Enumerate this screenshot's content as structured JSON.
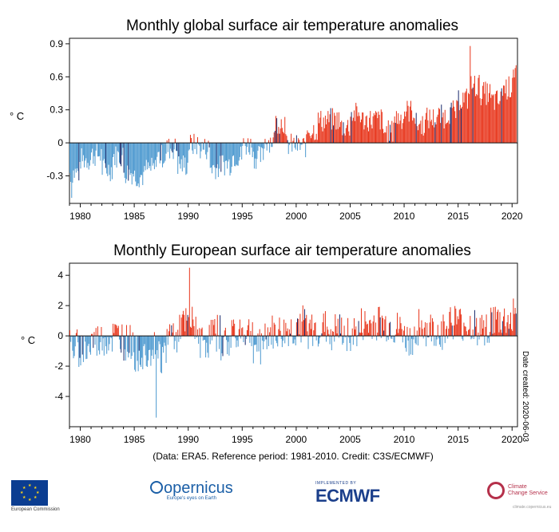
{
  "credit": "(Data: ERA5.  Reference period: 1981-2010.  Credit: C3S/ECMWF)",
  "date_created": "Date created: 2020-06-03",
  "logos": {
    "ec_text": "European Commission",
    "copernicus": "opernicus",
    "copernicus_tag": "Europe's eyes on Earth",
    "ecmwf_small": "IMPLEMENTED BY",
    "ecmwf": "ECMWF",
    "c3s_line1": "Climate",
    "c3s_line2": "Change Service",
    "c3s_url": "climate.copernicus.eu"
  },
  "colors": {
    "warm": "#e8361c",
    "cool": "#4e9ad0",
    "dark": "#1a2b6d",
    "axis": "#111111"
  },
  "chart_data": [
    {
      "type": "bar",
      "title": "Monthly global surface air temperature anomalies",
      "ylabel": "° C",
      "xlabel": "",
      "xlim": [
        1979,
        2020.5
      ],
      "ylim": [
        -0.55,
        0.95
      ],
      "yticks": [
        -0.3,
        0,
        0.3,
        0.6,
        0.9
      ],
      "ytick_labels": [
        "-0.3",
        "0",
        "0.3",
        "0.6",
        "0.9"
      ],
      "xticks": [
        1980,
        1985,
        1990,
        1995,
        2000,
        2005,
        2010,
        2015,
        2020
      ],
      "resolution": "monthly",
      "annual_mean_approx": {
        "years": [
          1979,
          1980,
          1981,
          1982,
          1983,
          1984,
          1985,
          1986,
          1987,
          1988,
          1989,
          1990,
          1991,
          1992,
          1993,
          1994,
          1995,
          1996,
          1997,
          1998,
          1999,
          2000,
          2001,
          2002,
          2003,
          2004,
          2005,
          2006,
          2007,
          2008,
          2009,
          2010,
          2011,
          2012,
          2013,
          2014,
          2015,
          2016,
          2017,
          2018,
          2019,
          2020
        ],
        "values": [
          -0.27,
          -0.15,
          -0.11,
          -0.24,
          -0.12,
          -0.27,
          -0.3,
          -0.24,
          -0.12,
          -0.05,
          -0.2,
          -0.02,
          -0.05,
          -0.22,
          -0.19,
          -0.12,
          -0.02,
          -0.13,
          0.02,
          0.19,
          -0.02,
          -0.03,
          0.12,
          0.2,
          0.21,
          0.15,
          0.26,
          0.21,
          0.21,
          0.1,
          0.23,
          0.29,
          0.17,
          0.22,
          0.24,
          0.28,
          0.4,
          0.52,
          0.45,
          0.38,
          0.5,
          0.66
        ]
      },
      "max_value": 0.88,
      "max_date": "2016-02",
      "min_value": -0.5,
      "min_date": "1979"
    },
    {
      "type": "bar",
      "title": "Monthly European surface air temperature anomalies",
      "ylabel": "° C",
      "xlabel": "",
      "xlim": [
        1979,
        2020.5
      ],
      "ylim": [
        -6,
        4.8
      ],
      "yticks": [
        -4,
        -2,
        0,
        2,
        4
      ],
      "ytick_labels": [
        "-4",
        "-2",
        "0",
        "2",
        "4"
      ],
      "xticks": [
        1980,
        1985,
        1990,
        1995,
        2000,
        2005,
        2010,
        2015,
        2020
      ],
      "resolution": "monthly",
      "annual_mean_approx": {
        "years": [
          1979,
          1980,
          1981,
          1982,
          1983,
          1984,
          1985,
          1986,
          1987,
          1988,
          1989,
          1990,
          1991,
          1992,
          1993,
          1994,
          1995,
          1996,
          1997,
          1998,
          1999,
          2000,
          2001,
          2002,
          2003,
          2004,
          2005,
          2006,
          2007,
          2008,
          2009,
          2010,
          2011,
          2012,
          2013,
          2014,
          2015,
          2016,
          2017,
          2018,
          2019,
          2020
        ],
        "values": [
          -0.8,
          -0.9,
          -0.4,
          -0.2,
          -0.1,
          -0.5,
          -1.2,
          -0.8,
          -1.3,
          0.1,
          0.6,
          0.7,
          -0.4,
          0.2,
          -0.5,
          0.4,
          0.2,
          -0.7,
          0.1,
          0.1,
          0.3,
          0.8,
          0.2,
          0.4,
          0.3,
          0.2,
          0.1,
          0.6,
          0.8,
          0.6,
          0.3,
          -0.3,
          0.6,
          0.3,
          0.2,
          0.9,
          0.7,
          0.6,
          0.6,
          0.9,
          0.9,
          1.4
        ]
      },
      "max_value": 4.5,
      "max_date": "1990-02",
      "min_value": -5.4,
      "min_date": "1987-01"
    }
  ]
}
